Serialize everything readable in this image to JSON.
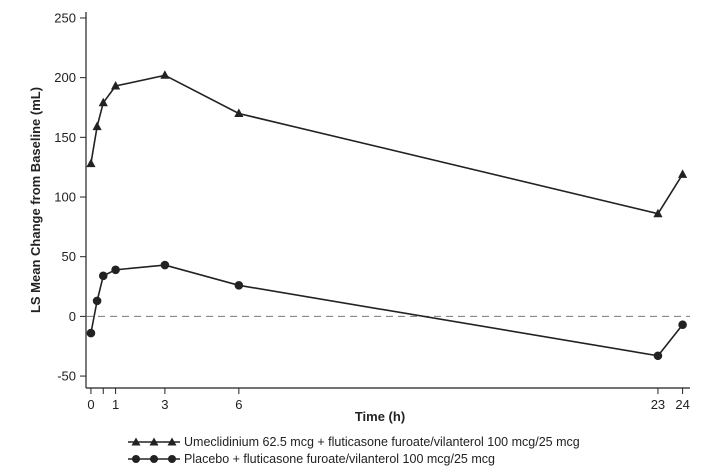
{
  "chart_data": {
    "type": "line",
    "xlabel": "Time (h)",
    "ylabel": "LS Mean Change from Baseline (mL)",
    "xlim": [
      -0.2,
      24.3
    ],
    "ylim": [
      -60,
      255
    ],
    "xticks": [
      0,
      0.5,
      1,
      3,
      6,
      23,
      24
    ],
    "xtick_labels": [
      "0",
      "",
      "1",
      "3",
      "6",
      "23",
      "24"
    ],
    "yticks": [
      -50,
      0,
      50,
      100,
      150,
      200,
      250
    ],
    "reference_line": 0,
    "grid": false,
    "legend_position": "bottom",
    "series": [
      {
        "name": "Umeclidinium 62.5 mcg + fluticasone furoate/vilanterol 100 mcg/25 mcg",
        "marker": "triangle",
        "x": [
          0,
          0.25,
          0.5,
          1,
          3,
          6,
          23,
          24
        ],
        "y": [
          128,
          159,
          179,
          193,
          202,
          170,
          86,
          119
        ]
      },
      {
        "name": "Placebo + fluticasone furoate/vilanterol 100 mcg/25 mcg",
        "marker": "circle",
        "x": [
          0,
          0.25,
          0.5,
          1,
          3,
          6,
          23,
          24
        ],
        "y": [
          -14,
          13,
          34,
          39,
          43,
          26,
          -33,
          -7
        ]
      }
    ]
  }
}
